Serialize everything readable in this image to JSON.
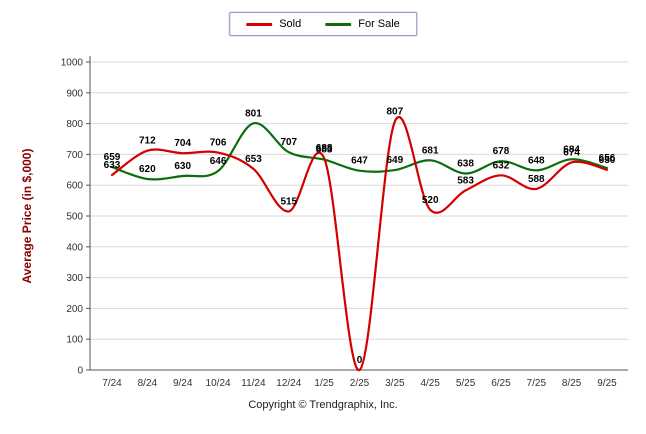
{
  "chart_data": {
    "type": "line",
    "categories": [
      "7/24",
      "8/24",
      "9/24",
      "10/24",
      "11/24",
      "12/24",
      "1/25",
      "2/25",
      "3/25",
      "4/25",
      "5/25",
      "6/25",
      "7/25",
      "8/25",
      "9/25"
    ],
    "series": [
      {
        "name": "Sold",
        "color": "#d40000",
        "values": [
          633,
          712,
          704,
          706,
          653,
          515,
          688,
          0,
          807,
          520,
          583,
          632,
          588,
          674,
          650
        ]
      },
      {
        "name": "For Sale",
        "color": "#0b6e0b",
        "values": [
          659,
          620,
          630,
          646,
          801,
          707,
          683,
          647,
          649,
          681,
          638,
          678,
          648,
          684,
          656
        ]
      }
    ],
    "title": "",
    "xlabel": "",
    "ylabel": "Average Price (in $,000)",
    "ylabel_color": "#8b0000",
    "ylim": [
      0,
      1000
    ],
    "ytick_step": 100,
    "grid": true,
    "gridline_color": "#d9d9d9",
    "legend_position": "top-center",
    "show_point_labels": true
  },
  "footer": {
    "copyright": "Copyright © Trendgraphix, Inc."
  }
}
